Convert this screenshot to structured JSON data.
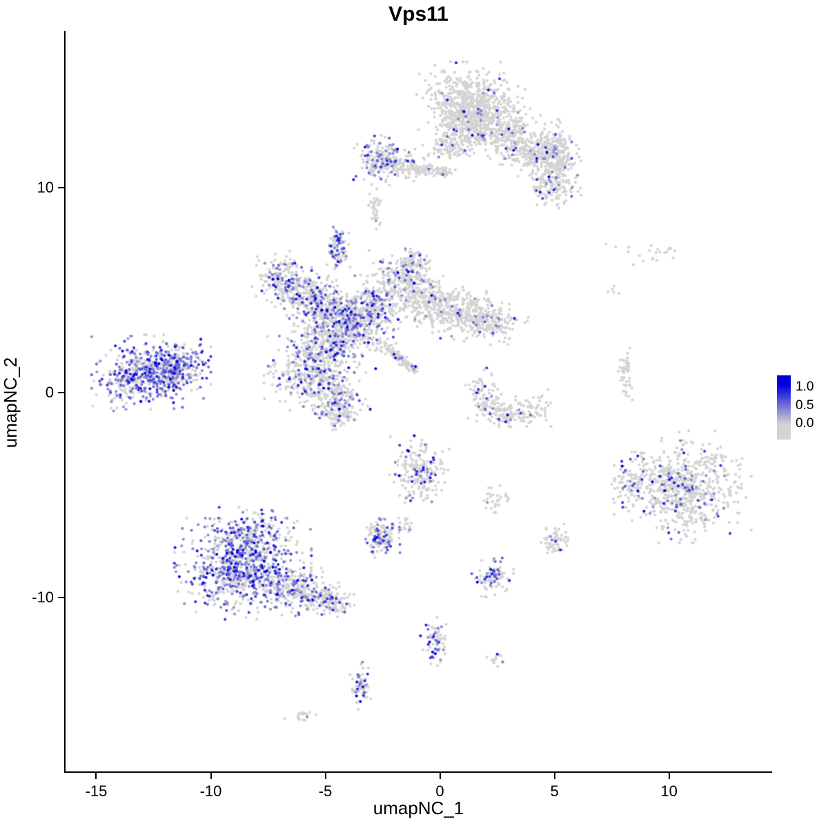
{
  "page": {
    "title": "Vps11"
  },
  "chart_data": {
    "type": "scatter",
    "title": "Vps11",
    "xlabel": "umapNC_1",
    "ylabel": "umapNC_2",
    "xlim": [
      -16.34,
      14.47
    ],
    "ylim": [
      -18.49,
      17.64
    ],
    "x_ticks": [
      -15,
      -10,
      -5,
      0,
      5,
      10
    ],
    "y_ticks": [
      10,
      0,
      -10
    ],
    "grid": false,
    "background": "#ffffff",
    "point_color_low": "#d3d3d3",
    "point_color_high": "#0000dd",
    "point_radius": 2.1,
    "legend": {
      "position": "right",
      "labels": [
        "1.0",
        "0.5",
        "0.0"
      ],
      "low_color": "#d3d3d3",
      "high_color": "#0000dd"
    },
    "clusters": [
      {
        "x": 1.2,
        "y": 14.2,
        "sx": 0.85,
        "sy": 0.75,
        "n": 480,
        "expr_frac": 0.05
      },
      {
        "x": 2.1,
        "y": 13.1,
        "sx": 0.9,
        "sy": 0.65,
        "n": 320,
        "expr_frac": 0.05
      },
      {
        "x": 0.9,
        "y": 12.9,
        "sx": 0.5,
        "sy": 0.5,
        "n": 140,
        "expr_frac": 0.04
      },
      {
        "x": 3.3,
        "y": 12.3,
        "sx": 0.5,
        "sy": 0.45,
        "n": 130,
        "expr_frac": 0.06
      },
      {
        "x": 4.1,
        "y": 11.7,
        "sx": 0.5,
        "sy": 0.5,
        "n": 150,
        "expr_frac": 0.06
      },
      {
        "x": 4.9,
        "y": 11.9,
        "sx": 0.45,
        "sy": 0.55,
        "n": 150,
        "expr_frac": 0.08
      },
      {
        "x": 5.4,
        "y": 11.3,
        "sx": 0.3,
        "sy": 0.4,
        "n": 70,
        "expr_frac": 0.06
      },
      {
        "x": 4.9,
        "y": 10.3,
        "sx": 0.5,
        "sy": 0.55,
        "n": 170,
        "expr_frac": 0.1
      },
      {
        "x": 0.4,
        "y": 11.9,
        "sx": 0.5,
        "sy": 0.3,
        "n": 60,
        "expr_frac": 0.03
      },
      {
        "x": -2.6,
        "y": 11.4,
        "sx": 0.45,
        "sy": 0.5,
        "n": 170,
        "expr_frac": 0.3
      },
      {
        "x": -1.7,
        "y": 11.1,
        "sx": 0.5,
        "sy": 0.3,
        "n": 90,
        "expr_frac": 0.12
      },
      {
        "x": -1.3,
        "y": 10.95,
        "x2": 0.5,
        "y2": 10.75,
        "sx": 0.15,
        "sy": 0.12,
        "n": 90,
        "expr_frac": 0.05
      },
      {
        "x": -2.8,
        "y": 9.3,
        "sx": 0.15,
        "sy": 0.3,
        "n": 22,
        "expr_frac": 0.05
      },
      {
        "x": -2.85,
        "y": 8.5,
        "sx": 0.12,
        "sy": 0.2,
        "n": 14,
        "expr_frac": 0.05
      },
      {
        "x": -4.5,
        "y": 7.2,
        "sx": 0.2,
        "sy": 0.4,
        "n": 70,
        "expr_frac": 0.5
      },
      {
        "x": -4.4,
        "y": 6.5,
        "sx": 0.2,
        "sy": 0.25,
        "n": 20,
        "expr_frac": 0.1
      },
      {
        "x": -6.9,
        "y": 5.6,
        "sx": 0.5,
        "sy": 0.5,
        "n": 150,
        "expr_frac": 0.25
      },
      {
        "x": -6.1,
        "y": 4.9,
        "sx": 0.6,
        "sy": 0.5,
        "n": 170,
        "expr_frac": 0.2
      },
      {
        "x": -5.1,
        "y": 4.3,
        "sx": 0.65,
        "sy": 0.55,
        "n": 230,
        "expr_frac": 0.2
      },
      {
        "x": -3.9,
        "y": 3.5,
        "sx": 0.8,
        "sy": 0.65,
        "n": 420,
        "expr_frac": 0.3
      },
      {
        "x": -2.9,
        "y": 4.3,
        "sx": 0.6,
        "sy": 0.55,
        "n": 230,
        "expr_frac": 0.15
      },
      {
        "x": -1.6,
        "y": 5.5,
        "sx": 0.6,
        "sy": 0.55,
        "n": 230,
        "expr_frac": 0.12
      },
      {
        "x": -1.2,
        "y": 6.5,
        "sx": 0.3,
        "sy": 0.3,
        "n": 60,
        "expr_frac": 0.1
      },
      {
        "x": -0.5,
        "y": 4.5,
        "sx": 0.65,
        "sy": 0.5,
        "n": 200,
        "expr_frac": 0.08
      },
      {
        "x": 0.8,
        "y": 3.9,
        "sx": 0.8,
        "sy": 0.5,
        "n": 240,
        "expr_frac": 0.06
      },
      {
        "x": 2.2,
        "y": 3.4,
        "sx": 0.65,
        "sy": 0.45,
        "n": 180,
        "expr_frac": 0.05
      },
      {
        "x": -4.8,
        "y": 2.3,
        "sx": 0.85,
        "sy": 0.6,
        "n": 280,
        "expr_frac": 0.25
      },
      {
        "x": -5.6,
        "y": 0.9,
        "sx": 0.8,
        "sy": 0.75,
        "n": 320,
        "expr_frac": 0.2
      },
      {
        "x": -4.6,
        "y": -0.3,
        "sx": 0.6,
        "sy": 0.5,
        "n": 180,
        "expr_frac": 0.15
      },
      {
        "x": -4.4,
        "y": -1.1,
        "sx": 0.3,
        "sy": 0.3,
        "n": 60,
        "expr_frac": 0.1
      },
      {
        "x": -2.7,
        "y": 2.5,
        "x2": -1.1,
        "y2": 1.1,
        "sx": 0.12,
        "sy": 0.12,
        "n": 120,
        "expr_frac": 0.05
      },
      {
        "x": -12.6,
        "y": 1.0,
        "sx": 1.0,
        "sy": 0.7,
        "n": 520,
        "expr_frac": 0.55
      },
      {
        "x": -11.4,
        "y": 1.3,
        "sx": 0.5,
        "sy": 0.4,
        "n": 150,
        "expr_frac": 0.6
      },
      {
        "x": -13.9,
        "y": 0.4,
        "sx": 0.5,
        "sy": 0.5,
        "n": 80,
        "expr_frac": 0.3
      },
      {
        "x": 1.9,
        "y": -0.1,
        "sx": 0.3,
        "sy": 0.5,
        "n": 80,
        "expr_frac": 0.2
      },
      {
        "x": 2.7,
        "y": -1.0,
        "sx": 0.5,
        "sy": 0.35,
        "n": 90,
        "expr_frac": 0.08
      },
      {
        "x": 3.9,
        "y": -0.9,
        "sx": 0.45,
        "sy": 0.4,
        "n": 70,
        "expr_frac": 0.05
      },
      {
        "x": 8.1,
        "y": 0.8,
        "sx": 0.15,
        "sy": 0.55,
        "n": 50,
        "expr_frac": 0.04
      },
      {
        "x": 10.6,
        "y": -4.6,
        "sx": 1.15,
        "sy": 1.05,
        "n": 680,
        "expr_frac": 0.1
      },
      {
        "x": 8.4,
        "y": -4.3,
        "sx": 0.4,
        "sy": 0.5,
        "n": 80,
        "expr_frac": 0.1
      },
      {
        "x": -8.6,
        "y": -8.6,
        "sx": 1.15,
        "sy": 0.95,
        "n": 760,
        "expr_frac": 0.45
      },
      {
        "x": -8.3,
        "y": -6.9,
        "sx": 0.8,
        "sy": 0.5,
        "n": 190,
        "expr_frac": 0.35
      },
      {
        "x": -6.4,
        "y": -9.6,
        "sx": 0.7,
        "sy": 0.5,
        "n": 210,
        "expr_frac": 0.3
      },
      {
        "x": -5.2,
        "y": -10.0,
        "sx": 0.5,
        "sy": 0.35,
        "n": 110,
        "expr_frac": 0.2
      },
      {
        "x": -4.4,
        "y": -10.3,
        "sx": 0.3,
        "sy": 0.25,
        "n": 50,
        "expr_frac": 0.15
      },
      {
        "x": -2.6,
        "y": -7.1,
        "sx": 0.35,
        "sy": 0.4,
        "n": 130,
        "expr_frac": 0.3
      },
      {
        "x": -1.7,
        "y": -6.5,
        "sx": 0.25,
        "sy": 0.2,
        "n": 20,
        "expr_frac": 0.1
      },
      {
        "x": -0.9,
        "y": -3.9,
        "sx": 0.5,
        "sy": 0.75,
        "n": 210,
        "expr_frac": 0.15
      },
      {
        "x": 2.4,
        "y": -5.2,
        "sx": 0.25,
        "sy": 0.3,
        "n": 30,
        "expr_frac": 0.05
      },
      {
        "x": 5.0,
        "y": -7.2,
        "sx": 0.3,
        "sy": 0.3,
        "n": 60,
        "expr_frac": 0.05
      },
      {
        "x": 2.3,
        "y": -9.0,
        "sx": 0.35,
        "sy": 0.4,
        "n": 90,
        "expr_frac": 0.3
      },
      {
        "x": -0.2,
        "y": -12.1,
        "sx": 0.25,
        "sy": 0.5,
        "n": 70,
        "expr_frac": 0.3
      },
      {
        "x": 2.4,
        "y": -12.9,
        "sx": 0.15,
        "sy": 0.2,
        "n": 14,
        "expr_frac": 0.2
      },
      {
        "x": -3.4,
        "y": -14.2,
        "sx": 0.2,
        "sy": 0.5,
        "n": 60,
        "expr_frac": 0.3
      },
      {
        "x": -6.0,
        "y": -15.8,
        "sx": 0.3,
        "sy": 0.15,
        "n": 16,
        "expr_frac": 0.05
      },
      {
        "x": 9.2,
        "y": 6.8,
        "sx": 0.9,
        "sy": 0.3,
        "n": 22,
        "expr_frac": 0.0
      },
      {
        "x": 7.7,
        "y": 5.0,
        "sx": 0.2,
        "sy": 0.2,
        "n": 5,
        "expr_frac": 0.0
      }
    ]
  }
}
